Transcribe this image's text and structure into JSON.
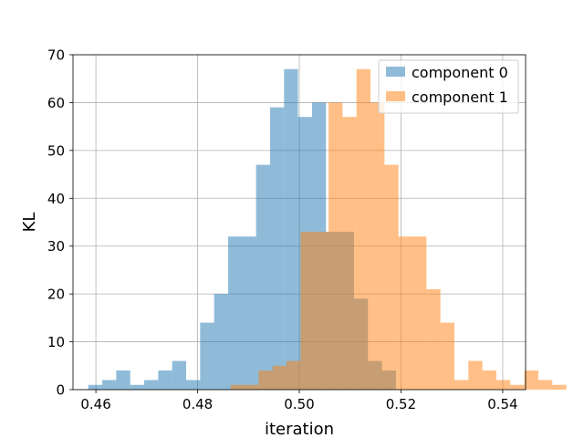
{
  "chart_data": {
    "type": "histogram",
    "title": "",
    "xlabel": "iteration",
    "ylabel": "KL",
    "xlim": [
      0.4555,
      0.5445
    ],
    "ylim": [
      0,
      70
    ],
    "x_ticks": [
      0.46,
      0.48,
      0.5,
      0.52,
      0.54
    ],
    "x_tick_labels": [
      "0.46",
      "0.48",
      "0.50",
      "0.52",
      "0.54"
    ],
    "y_ticks": [
      0,
      10,
      20,
      30,
      40,
      50,
      60,
      70
    ],
    "y_tick_labels": [
      "0",
      "10",
      "20",
      "30",
      "40",
      "50",
      "60",
      "70"
    ],
    "grid": true,
    "legend_position": "top-right",
    "alpha": 0.5,
    "series": [
      {
        "name": "component 0",
        "color": "#1f77b4",
        "bin_start": 0.4585,
        "bin_width": 0.00275,
        "counts": [
          1,
          2,
          4,
          1,
          2,
          4,
          6,
          2,
          14,
          20,
          32,
          32,
          47,
          59,
          67,
          57,
          60,
          33,
          33,
          19,
          6,
          4
        ]
      },
      {
        "name": "component 1",
        "color": "#ff7f0e",
        "bin_start": 0.4865,
        "bin_width": 0.00275,
        "counts": [
          1,
          1,
          4,
          5,
          6,
          33,
          33,
          60,
          57,
          67,
          60,
          47,
          32,
          32,
          21,
          14,
          2,
          6,
          4,
          2,
          1,
          4,
          2,
          1
        ]
      }
    ]
  }
}
